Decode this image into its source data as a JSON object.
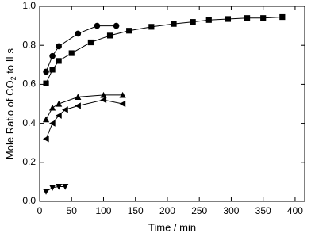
{
  "chart_data": {
    "type": "line",
    "x_label": "Time / min",
    "y_label": [
      "Mole Ratio of CO",
      "2",
      " to ILs"
    ],
    "xlim": [
      0,
      415
    ],
    "xticks": [
      0,
      50,
      100,
      150,
      200,
      250,
      300,
      350,
      400
    ],
    "ylim": [
      0,
      1
    ],
    "yticks": [
      {
        "value": 0,
        "label": "0.0"
      },
      0.2,
      0.4,
      0.6,
      0.8,
      {
        "value": 1,
        "label": "1.0"
      }
    ],
    "series": [
      {
        "marker": "square",
        "color": "#000000",
        "x": [
          10,
          20,
          30,
          50,
          80,
          110,
          140,
          175,
          210,
          240,
          265,
          295,
          325,
          350,
          380
        ],
        "values": [
          0.605,
          0.675,
          0.72,
          0.76,
          0.815,
          0.85,
          0.875,
          0.895,
          0.91,
          0.92,
          0.93,
          0.935,
          0.94,
          0.94,
          0.945
        ]
      },
      {
        "marker": "circle",
        "color": "#000000",
        "x": [
          10,
          20,
          30,
          60,
          90,
          120
        ],
        "values": [
          0.665,
          0.745,
          0.795,
          0.86,
          0.9,
          0.9
        ]
      },
      {
        "marker": "triangle-up",
        "color": "#000000",
        "x": [
          10,
          20,
          30,
          60,
          100,
          130
        ],
        "values": [
          0.42,
          0.48,
          0.5,
          0.535,
          0.545,
          0.545
        ]
      },
      {
        "marker": "triangle-left",
        "color": "#000000",
        "x": [
          10,
          20,
          30,
          40,
          60,
          100,
          130
        ],
        "values": [
          0.32,
          0.4,
          0.44,
          0.47,
          0.49,
          0.52,
          0.5
        ]
      },
      {
        "marker": "triangle-down",
        "color": "#000000",
        "x": [
          10,
          20,
          30,
          40
        ],
        "values": [
          0.05,
          0.07,
          0.075,
          0.075
        ]
      }
    ]
  }
}
